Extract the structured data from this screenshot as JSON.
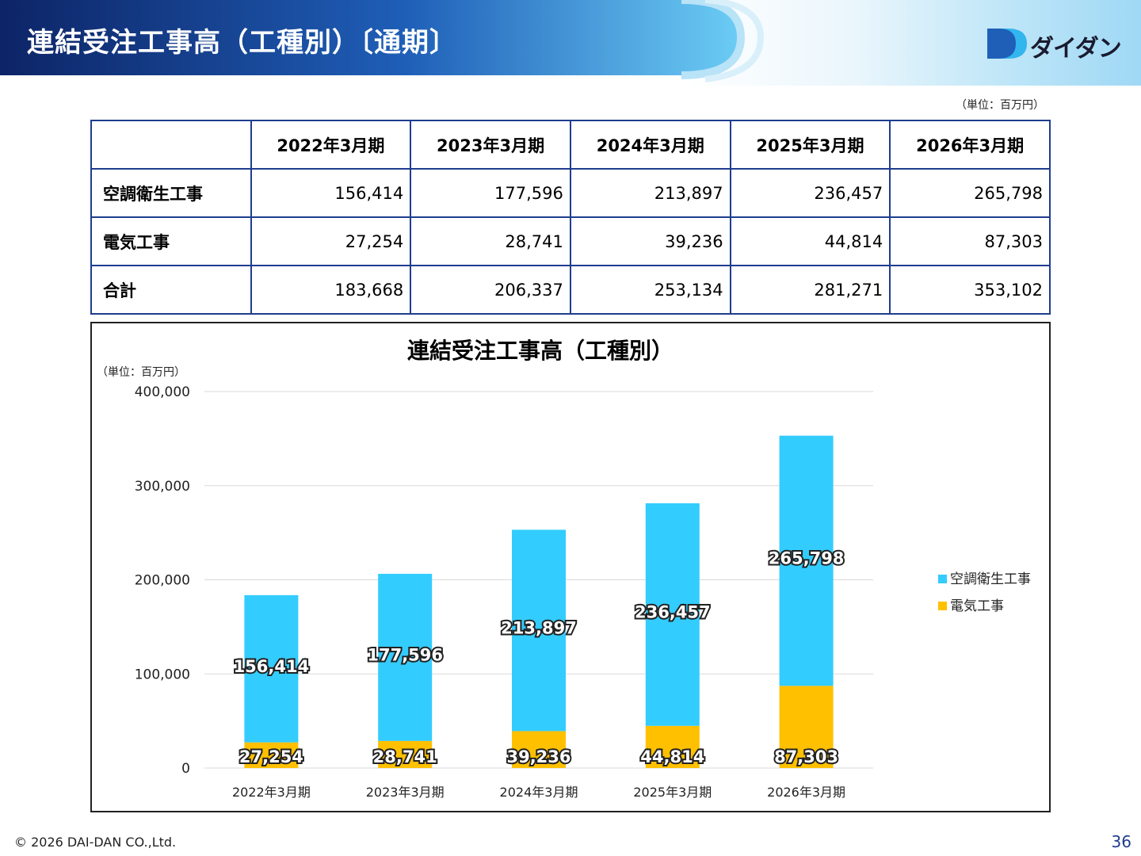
{
  "header": {
    "title": "連結受注工事高（工種別）〔通期〕",
    "logo_text": "ダイダン",
    "colors": {
      "banner_dark": "#0d2466",
      "banner_mid": "#1f5fb8",
      "banner_light": "#5cc3f0"
    }
  },
  "unit_label": "（単位：百万円）",
  "table": {
    "columns": [
      "2022年3月期",
      "2023年3月期",
      "2024年3月期",
      "2025年3月期",
      "2026年3月期"
    ],
    "rows": [
      {
        "label": "空調衛生工事",
        "values": [
          "156,414",
          "177,596",
          "213,897",
          "236,457",
          "265,798"
        ]
      },
      {
        "label": "電気工事",
        "values": [
          "27,254",
          "28,741",
          "39,236",
          "44,814",
          "87,303"
        ]
      },
      {
        "label": "合計",
        "values": [
          "183,668",
          "206,337",
          "253,134",
          "281,271",
          "353,102"
        ]
      }
    ]
  },
  "chart_data": {
    "type": "bar",
    "stacked": true,
    "title": "連結受注工事高（工種別）",
    "unit": "（単位：百万円）",
    "categories": [
      "2022年3月期",
      "2023年3月期",
      "2024年3月期",
      "2025年3月期",
      "2026年3月期"
    ],
    "series": [
      {
        "name": "電気工事",
        "values": [
          27254,
          28741,
          39236,
          44814,
          87303
        ],
        "labels": [
          "27,254",
          "28,741",
          "39,236",
          "44,814",
          "87,303"
        ],
        "color": "#ffc000"
      },
      {
        "name": "空調衛生工事",
        "values": [
          156414,
          177596,
          213897,
          236457,
          265798
        ],
        "labels": [
          "156,414",
          "177,596",
          "213,897",
          "236,457",
          "265,798"
        ],
        "color": "#33ccff"
      }
    ],
    "legend_order": [
      "空調衛生工事",
      "電気工事"
    ],
    "ylim": [
      0,
      400000
    ],
    "yticks": [
      0,
      100000,
      200000,
      300000,
      400000
    ],
    "ytick_labels": [
      "0",
      "100,000",
      "200,000",
      "300,000",
      "400,000"
    ],
    "grid": true,
    "legend_position": "right"
  },
  "footer": {
    "copyright": "© 2026 DAI-DAN CO.,Ltd.",
    "page_number": "36"
  }
}
